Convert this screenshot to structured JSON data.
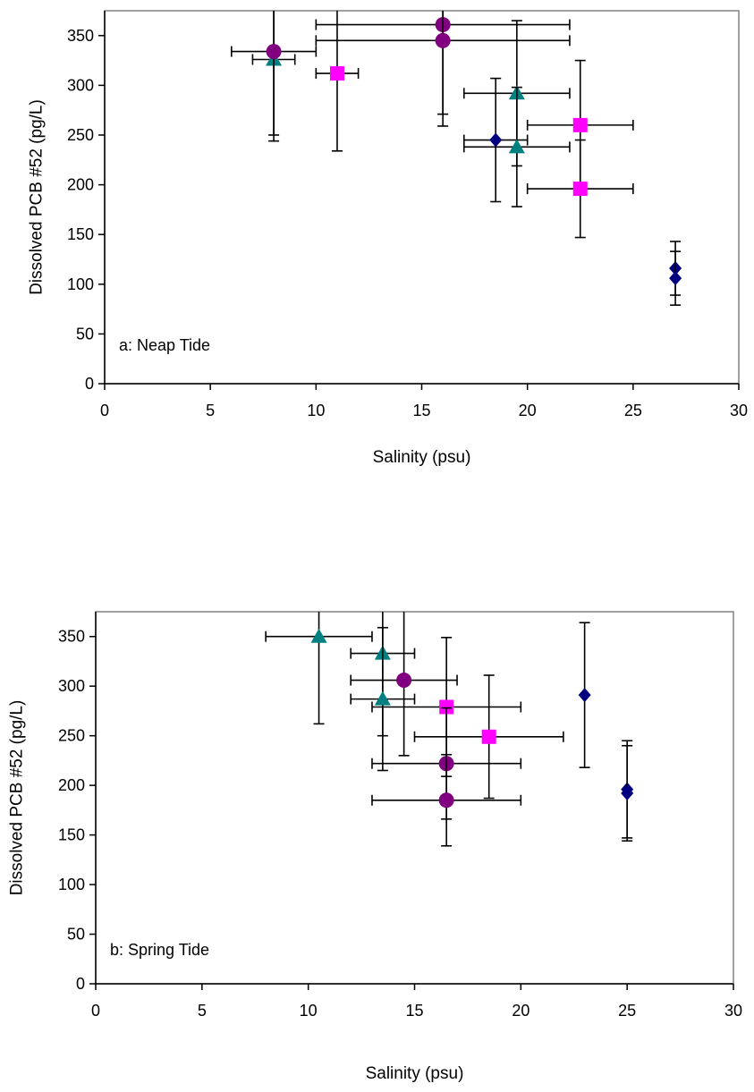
{
  "chart_data": [
    {
      "type": "scatter",
      "panel_label": "a:  Neap Tide",
      "xlabel": "Salinity (psu)",
      "ylabel": "Dissolved PCB #52 (pg/L)",
      "xlim": [
        0,
        30
      ],
      "ylim": [
        0,
        350
      ],
      "x_ticks": [
        "0",
        "5",
        "10",
        "15",
        "20",
        "25",
        "30"
      ],
      "y_ticks": [
        "0",
        "50",
        "100",
        "150",
        "200",
        "250",
        "300",
        "350"
      ],
      "grid": false,
      "legend": "none",
      "series": [
        {
          "marker": "diamond-icon",
          "color": "#000080",
          "points": [
            {
              "x": 18.5,
              "y": 245,
              "xerr": 1.5,
              "yerr": 62
            },
            {
              "x": 27,
              "y": 116,
              "xerr": 0,
              "yerr": 27
            },
            {
              "x": 27,
              "y": 106,
              "xerr": 0,
              "yerr": 27
            }
          ]
        },
        {
          "marker": "square-icon",
          "color": "#ff00ff",
          "points": [
            {
              "x": 11,
              "y": 312,
              "xerr": 1,
              "yerr": 78
            },
            {
              "x": 22.5,
              "y": 260,
              "xerr": 2.5,
              "yerr": 65
            },
            {
              "x": 22.5,
              "y": 196,
              "xerr": 2.5,
              "yerr": 49
            }
          ]
        },
        {
          "marker": "triangle-icon",
          "color": "#008080",
          "points": [
            {
              "x": 8,
              "y": 326,
              "xerr": 1,
              "yerr": 82
            },
            {
              "x": 19.5,
              "y": 292,
              "xerr": 2.5,
              "yerr": 73
            },
            {
              "x": 19.5,
              "y": 238,
              "xerr": 2.5,
              "yerr": 60
            }
          ]
        },
        {
          "marker": "circle-icon",
          "color": "#800080",
          "points": [
            {
              "x": 8,
              "y": 334,
              "xerr": 2,
              "yerr": 84
            },
            {
              "x": 16,
              "y": 361,
              "xerr": 6,
              "yerr": 90
            },
            {
              "x": 16,
              "y": 345,
              "xerr": 6,
              "yerr": 86
            }
          ]
        }
      ]
    },
    {
      "type": "scatter",
      "panel_label": "b:  Spring Tide",
      "xlabel": "Salinity (psu)",
      "ylabel": "Dissolved PCB #52 (pg/L)",
      "xlim": [
        0,
        30
      ],
      "ylim": [
        0,
        350
      ],
      "x_ticks": [
        "0",
        "5",
        "10",
        "15",
        "20",
        "25",
        "30"
      ],
      "y_ticks": [
        "0",
        "50",
        "100",
        "150",
        "200",
        "250",
        "300",
        "350"
      ],
      "grid": false,
      "legend": "none",
      "series": [
        {
          "marker": "diamond-icon",
          "color": "#000080",
          "points": [
            {
              "x": 23,
              "y": 291,
              "xerr": 0,
              "yerr": 73
            },
            {
              "x": 25,
              "y": 196,
              "xerr": 0,
              "yerr": 49
            },
            {
              "x": 25,
              "y": 192,
              "xerr": 0,
              "yerr": 48
            }
          ]
        },
        {
          "marker": "square-icon",
          "color": "#ff00ff",
          "points": [
            {
              "x": 16.5,
              "y": 279,
              "xerr": 3.5,
              "yerr": 70
            },
            {
              "x": 18.5,
              "y": 249,
              "xerr": 3.5,
              "yerr": 62
            }
          ]
        },
        {
          "marker": "triangle-icon",
          "color": "#008080",
          "points": [
            {
              "x": 10.5,
              "y": 350,
              "xerr": 2.5,
              "yerr": 88
            },
            {
              "x": 13.5,
              "y": 333,
              "xerr": 1.5,
              "yerr": 83
            },
            {
              "x": 13.5,
              "y": 287,
              "xerr": 1.5,
              "yerr": 72
            }
          ]
        },
        {
          "marker": "circle-icon",
          "color": "#800080",
          "points": [
            {
              "x": 14.5,
              "y": 306,
              "xerr": 2.5,
              "yerr": 76
            },
            {
              "x": 16.5,
              "y": 222,
              "xerr": 3.5,
              "yerr": 56
            },
            {
              "x": 16.5,
              "y": 185,
              "xerr": 3.5,
              "yerr": 46
            }
          ]
        }
      ]
    }
  ]
}
